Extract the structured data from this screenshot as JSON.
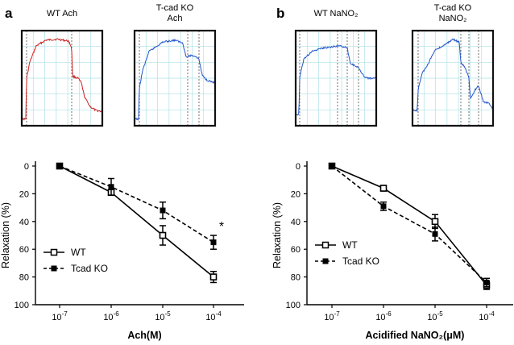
{
  "panels": [
    {
      "label": "a",
      "traces": [
        {
          "title_lines": [
            "WT Ach"
          ],
          "color": "#cc2222",
          "shape": "wt_ach"
        },
        {
          "title_lines": [
            "T-cad KO",
            "Ach"
          ],
          "color": "#2255cc",
          "shape": "ko_ach"
        }
      ]
    },
    {
      "label": "b",
      "traces": [
        {
          "title_lines": [
            "WT NaNO₂"
          ],
          "color": "#2255cc",
          "shape": "wt_no2"
        },
        {
          "title_lines": [
            "T-cad KO",
            "NaNO₂"
          ],
          "color": "#2255cc",
          "shape": "ko_no2"
        }
      ]
    }
  ],
  "chart_data": [
    {
      "type": "line",
      "panel": "a",
      "title": "",
      "xlabel": "Ach(M)",
      "ylabel": "Relaxation  (%)",
      "categories": [
        "10-7",
        "10-6",
        "10-5",
        "10-4"
      ],
      "category_labels": [
        {
          "base": "10",
          "exp": "-7"
        },
        {
          "base": "10",
          "exp": "-6"
        },
        {
          "base": "10",
          "exp": "-5"
        },
        {
          "base": "10",
          "exp": "-4"
        }
      ],
      "ylim": [
        0,
        100
      ],
      "y_inverted": true,
      "yticks": [
        0,
        20,
        40,
        60,
        80,
        100
      ],
      "legend_position": "bottom-left",
      "series": [
        {
          "name": "WT",
          "style": "solid",
          "marker": "open-square",
          "values": [
            0,
            19,
            50,
            80
          ],
          "errors": [
            1,
            2,
            7,
            4
          ]
        },
        {
          "name": "Tcad KO",
          "style": "dashed",
          "marker": "filled-square",
          "values": [
            0,
            15,
            32,
            55
          ],
          "errors": [
            1,
            6,
            6,
            5
          ]
        }
      ],
      "annotations": [
        {
          "text": "*",
          "category": "10-4",
          "value": 43
        }
      ]
    },
    {
      "type": "line",
      "panel": "b",
      "title": "",
      "xlabel": "Acidified NaNO₂(μM)",
      "ylabel": "Relaxation  (%)",
      "categories": [
        "10-7",
        "10-6",
        "10-5",
        "10-4"
      ],
      "category_labels": [
        {
          "base": "10",
          "exp": "-7"
        },
        {
          "base": "10",
          "exp": "-6"
        },
        {
          "base": "10",
          "exp": "-5"
        },
        {
          "base": "10",
          "exp": "-4"
        }
      ],
      "ylim": [
        0,
        100
      ],
      "y_inverted": true,
      "yticks": [
        0,
        20,
        40,
        60,
        80,
        100
      ],
      "legend_position": "middle-left",
      "series": [
        {
          "name": "WT",
          "style": "solid",
          "marker": "open-square",
          "values": [
            0,
            16,
            40,
            86
          ],
          "errors": [
            1,
            2,
            5,
            3
          ]
        },
        {
          "name": "Tcad KO",
          "style": "dashed",
          "marker": "filled-square",
          "values": [
            0,
            29,
            49,
            84
          ],
          "errors": [
            1,
            3,
            5,
            3
          ]
        }
      ],
      "annotations": []
    }
  ]
}
